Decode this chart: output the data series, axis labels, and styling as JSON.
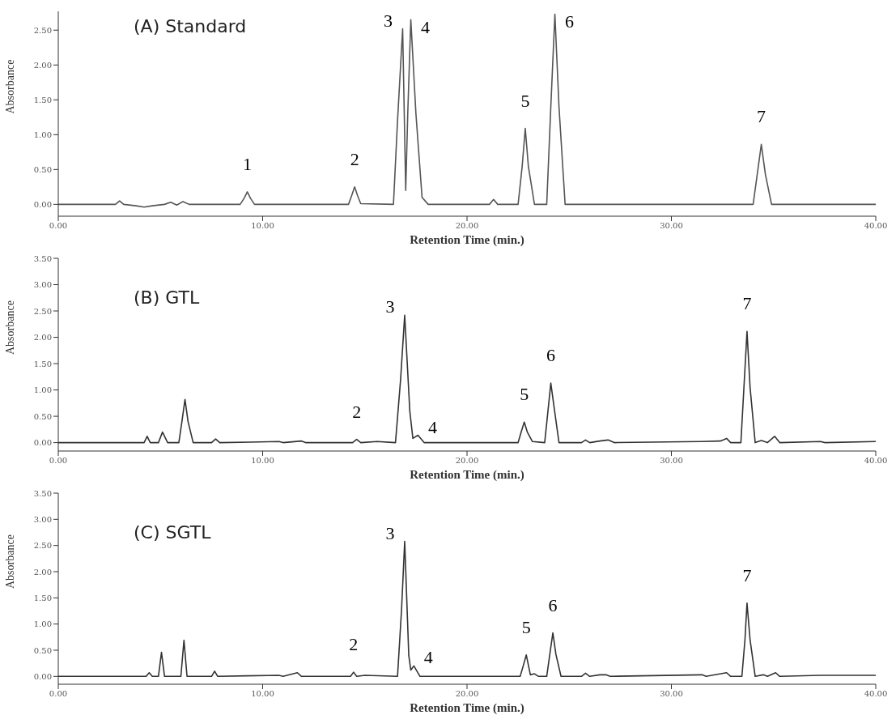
{
  "chart_data": [
    {
      "type": "line",
      "title": "(A) Standard",
      "xlabel": "Retention Time (min.)",
      "ylabel": "Absorbance",
      "color": "#555555",
      "x": [
        0,
        2.8,
        3.0,
        3.2,
        3.8,
        4.2,
        4.6,
        5.2,
        5.5,
        5.8,
        6.1,
        6.4,
        8.9,
        9.1,
        9.25,
        9.4,
        9.6,
        14.2,
        14.35,
        14.5,
        14.65,
        14.8,
        16.4,
        16.6,
        16.85,
        17.0,
        17.1,
        17.25,
        17.5,
        17.8,
        18.1,
        21.1,
        21.3,
        21.5,
        22.5,
        22.7,
        22.85,
        23.0,
        23.3,
        23.9,
        24.1,
        24.3,
        24.5,
        24.8,
        34.0,
        34.2,
        34.4,
        34.6,
        34.9,
        40
      ],
      "values": [
        0,
        0,
        0.05,
        0,
        -0.02,
        -0.04,
        -0.02,
        0,
        0.03,
        -0.01,
        0.04,
        0,
        0,
        0.09,
        0.18,
        0.09,
        0,
        0,
        0.12,
        0.25,
        0.12,
        0.01,
        0,
        1.2,
        2.52,
        0.2,
        1.3,
        2.65,
        1.3,
        0.1,
        0,
        0,
        0.07,
        0,
        0,
        0.55,
        1.09,
        0.55,
        0,
        0,
        1.4,
        2.73,
        1.4,
        0,
        0,
        0.43,
        0.86,
        0.43,
        0,
        0
      ],
      "xlim": [
        0,
        40
      ],
      "xticks": [
        {
          "value": 0,
          "label": "0.00"
        },
        {
          "value": 10,
          "label": "10.00"
        },
        {
          "value": 20,
          "label": "20.00"
        },
        {
          "value": 30,
          "label": "30.00"
        },
        {
          "value": 40,
          "label": "40.00"
        }
      ],
      "ylim": [
        -0.17,
        2.77
      ],
      "yticks": [
        {
          "value": 0,
          "label": "0.00"
        },
        {
          "value": 0.5,
          "label": "0.50"
        },
        {
          "value": 1,
          "label": "1.00"
        },
        {
          "value": 1.5,
          "label": "1.50"
        },
        {
          "value": 2,
          "label": "2.00"
        },
        {
          "value": 2.5,
          "label": "2.50"
        }
      ],
      "annotations": [
        {
          "text": "1",
          "x": 9.25,
          "y": 0.18
        },
        {
          "text": "2",
          "x": 14.5,
          "y": 0.25
        },
        {
          "text": "3",
          "x": 16.85,
          "y": 2.52
        },
        {
          "text": "4",
          "x": 17.25,
          "y": 2.65
        },
        {
          "text": "5",
          "x": 22.85,
          "y": 1.09
        },
        {
          "text": "6",
          "x": 24.3,
          "y": 2.73
        },
        {
          "text": "7",
          "x": 34.4,
          "y": 0.86
        }
      ]
    },
    {
      "type": "line",
      "title": "(B) GTL",
      "xlabel": "Retention Time (min.)",
      "ylabel": "Absorbance",
      "color": "#333333",
      "x": [
        0,
        2.5,
        4.2,
        4.35,
        4.5,
        4.9,
        5.1,
        5.35,
        5.9,
        6.05,
        6.2,
        6.35,
        6.6,
        7.5,
        7.7,
        7.9,
        9.4,
        10.8,
        11.0,
        11.9,
        12.1,
        14.4,
        14.6,
        14.8,
        15.6,
        16.5,
        16.75,
        16.95,
        17.2,
        17.35,
        17.6,
        17.9,
        22.5,
        22.65,
        22.8,
        22.95,
        23.2,
        23.8,
        23.95,
        24.1,
        24.3,
        24.5,
        25.6,
        25.8,
        26.0,
        26.5,
        26.9,
        27.2,
        31.5,
        32.4,
        32.7,
        32.9,
        33.4,
        33.55,
        33.7,
        33.85,
        34.1,
        34.4,
        34.7,
        35.05,
        35.3,
        37.3,
        37.5,
        40
      ],
      "values": [
        0,
        0,
        0,
        0.12,
        0,
        0,
        0.2,
        0,
        0,
        0.4,
        0.82,
        0.4,
        0,
        0,
        0.07,
        0,
        0.01,
        0.02,
        0,
        0.03,
        0,
        0,
        0.06,
        0,
        0.02,
        0,
        1.2,
        2.42,
        0.6,
        0.08,
        0.14,
        0,
        0,
        0.2,
        0.39,
        0.2,
        0.02,
        0,
        0.56,
        1.13,
        0.56,
        0,
        0,
        0.05,
        0,
        0.03,
        0.05,
        0,
        0.02,
        0.03,
        0.08,
        0,
        0,
        1.05,
        2.11,
        1.05,
        0,
        0.04,
        0,
        0.12,
        0,
        0.02,
        0,
        0.02
      ],
      "xlim": [
        0,
        40
      ],
      "xticks": [
        {
          "value": 0,
          "label": "0.00"
        },
        {
          "value": 10,
          "label": "10.00"
        },
        {
          "value": 20,
          "label": "20.00"
        },
        {
          "value": 30,
          "label": "30.00"
        },
        {
          "value": 40,
          "label": "40.00"
        }
      ],
      "ylim": [
        -0.16,
        3.5
      ],
      "yticks": [
        {
          "value": 0,
          "label": "0.00"
        },
        {
          "value": 0.5,
          "label": "0.50"
        },
        {
          "value": 1,
          "label": "1.00"
        },
        {
          "value": 1.5,
          "label": "1.50"
        },
        {
          "value": 2,
          "label": "2.00"
        },
        {
          "value": 2.5,
          "label": "2.50"
        },
        {
          "value": 3,
          "label": "3.00"
        },
        {
          "value": 3.5,
          "label": "3.50"
        }
      ],
      "annotations": [
        {
          "text": "2",
          "x": 14.6,
          "y": 0.06
        },
        {
          "text": "3",
          "x": 16.95,
          "y": 2.42
        },
        {
          "text": "4",
          "x": 17.6,
          "y": 0.14
        },
        {
          "text": "5",
          "x": 22.8,
          "y": 0.39
        },
        {
          "text": "6",
          "x": 24.1,
          "y": 1.13
        },
        {
          "text": "7",
          "x": 33.7,
          "y": 2.11
        }
      ]
    },
    {
      "type": "line",
      "title": "(C) SGTL",
      "xlabel": "Retention Time (min.)",
      "ylabel": "Absorbance",
      "color": "#333333",
      "x": [
        0,
        2.6,
        4.3,
        4.45,
        4.6,
        4.9,
        5.05,
        5.2,
        6.0,
        6.15,
        6.3,
        7.5,
        7.65,
        7.8,
        9.2,
        10.8,
        11.0,
        11.7,
        11.9,
        14.3,
        14.45,
        14.6,
        15.0,
        16.6,
        16.8,
        16.95,
        17.15,
        17.25,
        17.4,
        17.7,
        22.6,
        22.75,
        22.9,
        23.1,
        23.3,
        23.5,
        23.9,
        24.05,
        24.2,
        24.35,
        24.6,
        25.6,
        25.8,
        26.0,
        26.5,
        26.8,
        27.0,
        31.5,
        31.7,
        32.7,
        32.9,
        33.45,
        33.6,
        33.7,
        33.85,
        34.1,
        34.5,
        34.7,
        35.1,
        35.3,
        37.3,
        40
      ],
      "values": [
        0,
        0,
        0,
        0.07,
        0,
        0,
        0.46,
        0,
        0,
        0.69,
        0,
        0,
        0.1,
        0,
        0.01,
        0.02,
        0,
        0.07,
        0,
        0,
        0.08,
        0,
        0.02,
        0,
        1.3,
        2.58,
        0.4,
        0.12,
        0.2,
        0,
        0,
        0.2,
        0.41,
        0.03,
        0.05,
        0,
        0,
        0.42,
        0.83,
        0.42,
        0,
        0,
        0.06,
        0,
        0.03,
        0.03,
        0,
        0.03,
        0,
        0.07,
        0,
        0,
        0.7,
        1.4,
        0.7,
        0,
        0.03,
        0,
        0.07,
        0,
        0.02,
        0.02
      ],
      "xlim": [
        0,
        40
      ],
      "xticks": [
        {
          "value": 0,
          "label": "0.00"
        },
        {
          "value": 10,
          "label": "10.00"
        },
        {
          "value": 20,
          "label": "20.00"
        },
        {
          "value": 30,
          "label": "30.00"
        },
        {
          "value": 40,
          "label": "40.00"
        }
      ],
      "ylim": [
        -0.15,
        3.5
      ],
      "yticks": [
        {
          "value": 0,
          "label": "0.00"
        },
        {
          "value": 0.5,
          "label": "0.50"
        },
        {
          "value": 1,
          "label": "1.00"
        },
        {
          "value": 1.5,
          "label": "1.50"
        },
        {
          "value": 2,
          "label": "2.00"
        },
        {
          "value": 2.5,
          "label": "2.50"
        },
        {
          "value": 3,
          "label": "3.00"
        },
        {
          "value": 3.5,
          "label": "3.50"
        }
      ],
      "annotations": [
        {
          "text": "2",
          "x": 14.45,
          "y": 0.08
        },
        {
          "text": "3",
          "x": 16.95,
          "y": 2.58
        },
        {
          "text": "4",
          "x": 17.4,
          "y": 0.2
        },
        {
          "text": "5",
          "x": 22.9,
          "y": 0.41
        },
        {
          "text": "6",
          "x": 24.2,
          "y": 0.83
        },
        {
          "text": "7",
          "x": 33.7,
          "y": 1.4
        }
      ]
    }
  ]
}
